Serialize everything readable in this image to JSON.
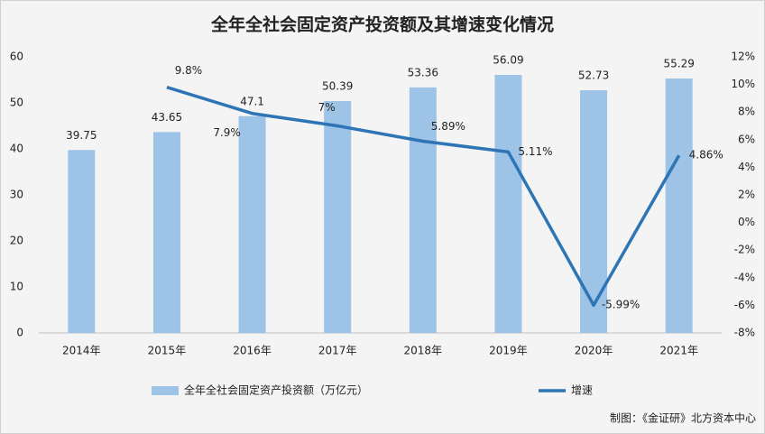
{
  "chart_data": {
    "type": "bar",
    "title": "全年全社会固定资产投资额及其增速变化情况",
    "categories": [
      "2014年",
      "2015年",
      "2016年",
      "2017年",
      "2018年",
      "2019年",
      "2020年",
      "2021年"
    ],
    "series": [
      {
        "name": "全年全社会固定资产投资额（万亿元）",
        "type": "bar",
        "axis": "y",
        "color": "#9dc3e6",
        "values": [
          39.75,
          43.65,
          47.1,
          50.39,
          53.36,
          56.09,
          52.73,
          55.29
        ]
      },
      {
        "name": "增速",
        "type": "line",
        "axis": "y2",
        "color": "#2e75b6",
        "values": [
          null,
          9.8,
          7.9,
          7,
          5.89,
          5.11,
          -5.99,
          4.86
        ],
        "value_labels": [
          null,
          "9.8%",
          "7.9%",
          "7%",
          "5.89%",
          "5.11%",
          "-5.99%",
          "4.86%"
        ]
      }
    ],
    "ylim": [
      0,
      60
    ],
    "yticks": [
      0,
      10,
      20,
      30,
      40,
      50,
      60
    ],
    "y2lim": [
      -8,
      12
    ],
    "y2ticks": [
      {
        "value": -8,
        "label": "-8%"
      },
      {
        "value": -6,
        "label": "-6%"
      },
      {
        "value": -4,
        "label": "-4%"
      },
      {
        "value": -2,
        "label": "-2%"
      },
      {
        "value": 0,
        "label": "0%"
      },
      {
        "value": 2,
        "label": "2%"
      },
      {
        "value": 4,
        "label": "4%"
      },
      {
        "value": 6,
        "label": "6%"
      },
      {
        "value": 8,
        "label": "8%"
      },
      {
        "value": 10,
        "label": "10%"
      },
      {
        "value": 12,
        "label": "12%"
      }
    ],
    "legend": "bottom",
    "source": "制图：《金证研》北方资本中心"
  }
}
